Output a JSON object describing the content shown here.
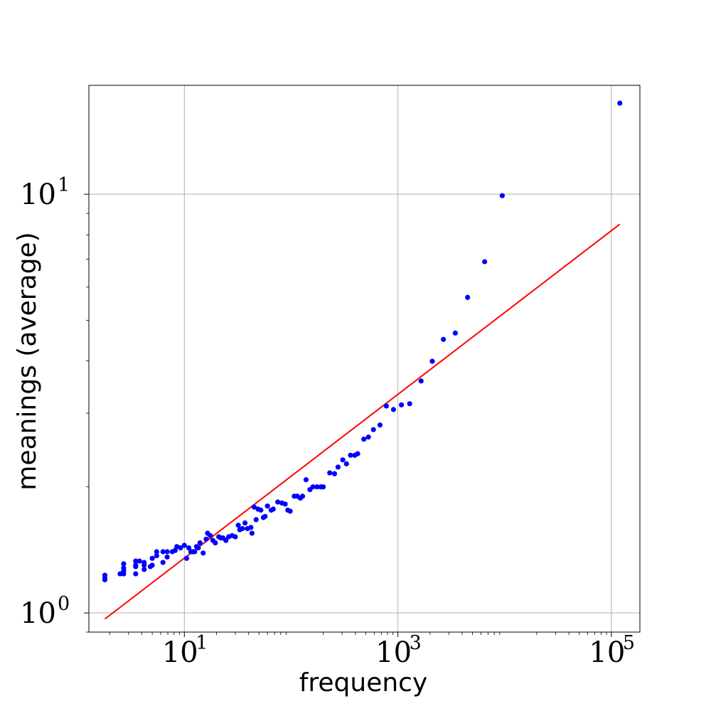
{
  "chart_data": {
    "type": "scatter",
    "title": "",
    "xlabel": "frequency",
    "ylabel": "meanings (average)",
    "xscale": "log",
    "yscale": "log",
    "xlim": [
      1.275,
      185000
    ],
    "ylim": [
      0.9,
      18.2
    ],
    "grid": true,
    "legend": "none",
    "x_ticks": [
      {
        "base": "10",
        "exp": "1",
        "value": 10
      },
      {
        "base": "10",
        "exp": "3",
        "value": 1000
      },
      {
        "base": "10",
        "exp": "5",
        "value": 100000
      }
    ],
    "y_ticks": [
      {
        "base": "10",
        "exp": "0",
        "value": 1
      },
      {
        "base": "10",
        "exp": "1",
        "value": 10
      }
    ],
    "colors": {
      "points": "#0000ff",
      "fit_line": "#ff0000",
      "grid": "#b0b0b0",
      "frame": "#000000"
    },
    "series": [
      {
        "kind": "points",
        "points": [
          [
            1.8,
            1.2
          ],
          [
            1.8,
            1.21
          ],
          [
            1.8,
            1.23
          ],
          [
            2.5,
            1.24
          ],
          [
            2.7,
            1.24
          ],
          [
            2.7,
            1.26
          ],
          [
            2.7,
            1.28
          ],
          [
            2.7,
            1.31
          ],
          [
            3.5,
            1.24
          ],
          [
            3.5,
            1.29
          ],
          [
            3.5,
            1.3
          ],
          [
            3.5,
            1.33
          ],
          [
            3.8,
            1.33
          ],
          [
            4.2,
            1.27
          ],
          [
            4.2,
            1.3
          ],
          [
            4.2,
            1.32
          ],
          [
            4.8,
            1.29
          ],
          [
            5.0,
            1.3
          ],
          [
            5.0,
            1.35
          ],
          [
            5.5,
            1.37
          ],
          [
            5.5,
            1.4
          ],
          [
            6.3,
            1.32
          ],
          [
            6.3,
            1.4
          ],
          [
            6.9,
            1.36
          ],
          [
            6.9,
            1.4
          ],
          [
            7.7,
            1.4
          ],
          [
            8.2,
            1.41
          ],
          [
            8.5,
            1.44
          ],
          [
            9.2,
            1.43
          ],
          [
            10.0,
            1.45
          ],
          [
            10.5,
            1.35
          ],
          [
            11.0,
            1.43
          ],
          [
            11.5,
            1.4
          ],
          [
            12.0,
            1.4
          ],
          [
            12.5,
            1.4
          ],
          [
            13.0,
            1.44
          ],
          [
            13.5,
            1.43
          ],
          [
            14.0,
            1.47
          ],
          [
            15.0,
            1.39
          ],
          [
            16.0,
            1.5
          ],
          [
            16.5,
            1.55
          ],
          [
            17.5,
            1.53
          ],
          [
            18.5,
            1.49
          ],
          [
            19.5,
            1.47
          ],
          [
            21.0,
            1.52
          ],
          [
            22.0,
            1.51
          ],
          [
            23.0,
            1.51
          ],
          [
            24.5,
            1.49
          ],
          [
            26.0,
            1.52
          ],
          [
            28.0,
            1.53
          ],
          [
            30.0,
            1.52
          ],
          [
            32.0,
            1.62
          ],
          [
            33.0,
            1.58
          ],
          [
            35.0,
            1.59
          ],
          [
            37.0,
            1.64
          ],
          [
            39.0,
            1.59
          ],
          [
            42.0,
            1.6
          ],
          [
            43.0,
            1.55
          ],
          [
            45.0,
            1.79
          ],
          [
            47.0,
            1.67
          ],
          [
            49.0,
            1.77
          ],
          [
            52.0,
            1.76
          ],
          [
            55.0,
            1.69
          ],
          [
            57.0,
            1.7
          ],
          [
            60.0,
            1.8
          ],
          [
            65.0,
            1.76
          ],
          [
            68.0,
            1.77
          ],
          [
            75.0,
            1.84
          ],
          [
            82.0,
            1.83
          ],
          [
            88.0,
            1.82
          ],
          [
            93.0,
            1.76
          ],
          [
            98.0,
            1.75
          ],
          [
            107.0,
            1.9
          ],
          [
            114.0,
            1.9
          ],
          [
            122.0,
            1.88
          ],
          [
            128.0,
            1.9
          ],
          [
            138.0,
            2.08
          ],
          [
            150.0,
            1.97
          ],
          [
            160.0,
            2.0
          ],
          [
            175.0,
            2.0
          ],
          [
            190.0,
            2.0
          ],
          [
            200.0,
            2.0
          ],
          [
            230.0,
            2.16
          ],
          [
            255.0,
            2.15
          ],
          [
            275.0,
            2.23
          ],
          [
            305.0,
            2.32
          ],
          [
            330.0,
            2.27
          ],
          [
            360.0,
            2.38
          ],
          [
            395.0,
            2.38
          ],
          [
            420.0,
            2.4
          ],
          [
            480.0,
            2.6
          ],
          [
            530.0,
            2.63
          ],
          [
            590.0,
            2.74
          ],
          [
            680.0,
            2.81
          ],
          [
            780.0,
            3.12
          ],
          [
            910.0,
            3.06
          ],
          [
            1080.0,
            3.14
          ],
          [
            1290.0,
            3.16
          ],
          [
            1650.0,
            3.58
          ],
          [
            2100.0,
            3.99
          ],
          [
            2670.0,
            4.5
          ],
          [
            3450.0,
            4.66
          ],
          [
            4500.0,
            5.67
          ],
          [
            6500.0,
            6.9
          ],
          [
            9500.0,
            9.92
          ],
          [
            120000.0,
            16.5
          ]
        ]
      },
      {
        "kind": "line",
        "points": [
          [
            1.8,
            0.967
          ],
          [
            120000.0,
            8.48
          ]
        ]
      }
    ]
  }
}
